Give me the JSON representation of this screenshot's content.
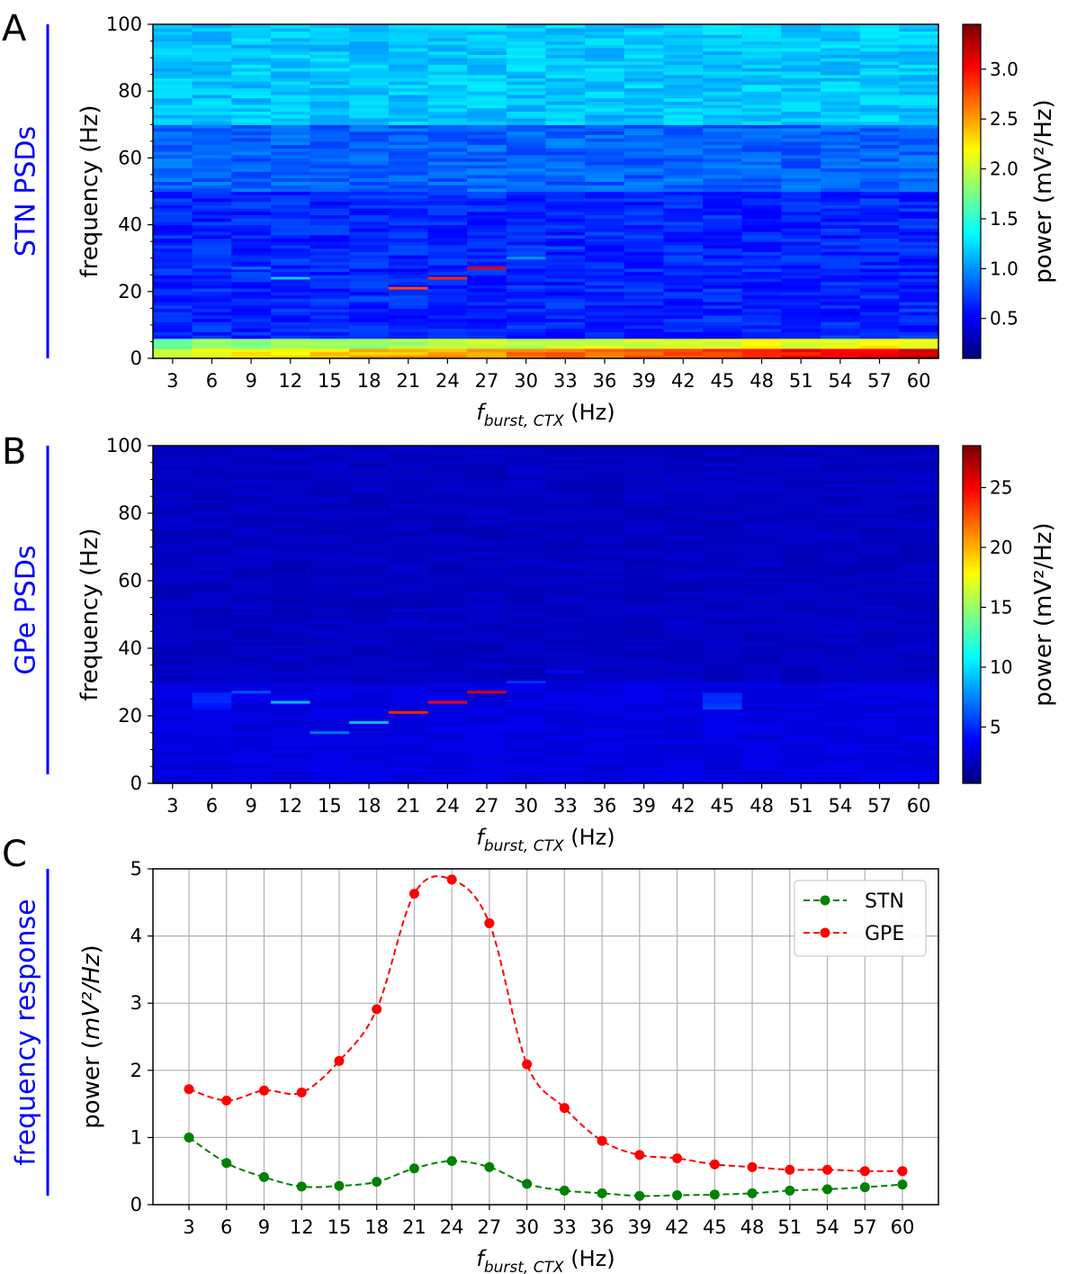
{
  "chart_data": [
    {
      "panel": "A",
      "type": "heatmap",
      "side_label": "STN PSDs",
      "side_label_color": "#0000ff",
      "xlabel_main": "f",
      "xlabel_sub": "burst, CTX",
      "xlabel_unit": " (Hz)",
      "ylabel": "frequency (Hz)",
      "x": [
        3,
        6,
        9,
        12,
        15,
        18,
        21,
        24,
        27,
        30,
        33,
        36,
        39,
        42,
        45,
        48,
        51,
        54,
        57,
        60
      ],
      "ylim": [
        0,
        100
      ],
      "yticks": [
        0,
        20,
        40,
        60,
        80,
        100
      ],
      "colorbar_label": "power (mV²/Hz)",
      "colorbar_range": [
        0.1,
        3.45
      ],
      "colorbar_ticks": [
        0.5,
        1.0,
        1.5,
        2.0,
        2.5,
        3.0
      ],
      "colorbar_tick_labels": [
        "0.5",
        "1.0",
        "1.5",
        "2.0",
        "2.5",
        "3.0"
      ],
      "colormap": "jet",
      "peak_lines": [
        {
          "x": 9,
          "f": 27,
          "power": 0.9
        },
        {
          "x": 12,
          "f": 24,
          "power": 1.2
        },
        {
          "x": 15,
          "f": 15,
          "power": 0.6
        },
        {
          "x": 18,
          "f": 18,
          "power": 0.8
        },
        {
          "x": 21,
          "f": 21,
          "power": 2.8
        },
        {
          "x": 24,
          "f": 24,
          "power": 2.9
        },
        {
          "x": 27,
          "f": 27,
          "power": 3.1
        },
        {
          "x": 30,
          "f": 30,
          "power": 1.0
        },
        {
          "x": 33,
          "f": 33,
          "power": 0.8
        },
        {
          "x": 36,
          "f": 36,
          "power": 0.6
        }
      ]
    },
    {
      "panel": "B",
      "type": "heatmap",
      "side_label": "GPe PSDs",
      "side_label_color": "#0000ff",
      "xlabel_main": "f",
      "xlabel_sub": "burst, CTX",
      "xlabel_unit": " (Hz)",
      "ylabel": "frequency (Hz)",
      "x": [
        3,
        6,
        9,
        12,
        15,
        18,
        21,
        24,
        27,
        30,
        33,
        36,
        39,
        42,
        45,
        48,
        51,
        54,
        57,
        60
      ],
      "ylim": [
        0,
        100
      ],
      "yticks": [
        0,
        20,
        40,
        60,
        80,
        100
      ],
      "colorbar_label": "power (mV²/Hz)",
      "colorbar_range": [
        0.3,
        28.5
      ],
      "colorbar_ticks": [
        5,
        10,
        15,
        20,
        25
      ],
      "colorbar_tick_labels": [
        "5",
        "10",
        "15",
        "20",
        "25"
      ],
      "colormap": "jet",
      "peak_lines": [
        {
          "x": 9,
          "f": 27,
          "power": 6
        },
        {
          "x": 12,
          "f": 24,
          "power": 9
        },
        {
          "x": 15,
          "f": 15,
          "power": 7
        },
        {
          "x": 18,
          "f": 18,
          "power": 9
        },
        {
          "x": 21,
          "f": 21,
          "power": 24
        },
        {
          "x": 24,
          "f": 24,
          "power": 25
        },
        {
          "x": 27,
          "f": 27,
          "power": 26
        },
        {
          "x": 30,
          "f": 30,
          "power": 5
        },
        {
          "x": 33,
          "f": 33,
          "power": 4
        }
      ]
    },
    {
      "panel": "C",
      "type": "line",
      "side_label": "frequency response",
      "side_label_color": "#0000ff",
      "xlabel_main": "f",
      "xlabel_sub": "burst, CTX",
      "xlabel_unit": " (Hz)",
      "ylabel_prefix": "power (",
      "ylabel_unit": "mV²/Hz",
      "ylabel_suffix": ")",
      "x": [
        3,
        6,
        9,
        12,
        15,
        18,
        21,
        24,
        27,
        30,
        33,
        36,
        39,
        42,
        45,
        48,
        51,
        54,
        57,
        60
      ],
      "ylim": [
        0,
        5
      ],
      "yticks": [
        0,
        1,
        2,
        3,
        4,
        5
      ],
      "grid": true,
      "legend_position": "top-right",
      "series": [
        {
          "name": "STN",
          "color": "#008000",
          "values": [
            1.0,
            0.62,
            0.41,
            0.27,
            0.28,
            0.34,
            0.54,
            0.65,
            0.56,
            0.31,
            0.21,
            0.17,
            0.13,
            0.14,
            0.15,
            0.17,
            0.21,
            0.23,
            0.26,
            0.3
          ]
        },
        {
          "name": "GPE",
          "color": "#ff0000",
          "values": [
            1.72,
            1.55,
            1.7,
            1.67,
            2.14,
            2.91,
            4.63,
            4.84,
            4.19,
            2.09,
            1.44,
            0.95,
            0.74,
            0.69,
            0.6,
            0.56,
            0.52,
            0.52,
            0.5,
            0.5
          ]
        }
      ]
    }
  ]
}
